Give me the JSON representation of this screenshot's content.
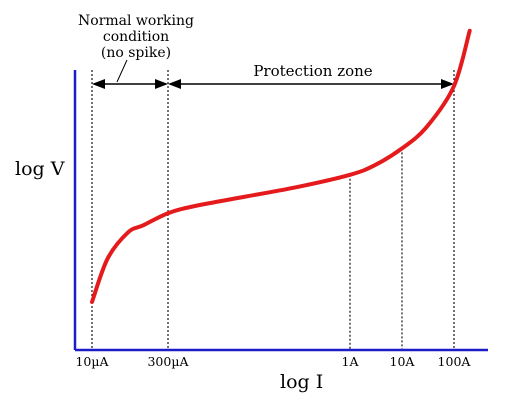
{
  "chart_data": {
    "type": "line",
    "xlabel": "log I",
    "ylabel": "log V",
    "x_scale": "log",
    "x_ticks": [
      {
        "value": 1e-05,
        "label": "10µA"
      },
      {
        "value": 0.0003,
        "label": "300µA"
      },
      {
        "value": 1,
        "label": "1A"
      },
      {
        "value": 10,
        "label": "10A"
      },
      {
        "value": 100,
        "label": "100A"
      }
    ],
    "grid": false,
    "curve_color": "#e41a1c",
    "axis_color": "#1c1cc8",
    "series": [
      {
        "x": [
          1e-05,
          2e-05,
          5e-05,
          0.0001,
          0.0003,
          0.001,
          0.01,
          0.1,
          1,
          3,
          10,
          30,
          100,
          200
        ],
        "y": [
          0.2,
          0.38,
          0.49,
          0.52,
          0.57,
          0.6,
          0.64,
          0.68,
          0.73,
          0.77,
          0.84,
          0.93,
          1.1,
          1.33
        ]
      }
    ],
    "annotations": [
      {
        "text": "Normal working condition (no spike)",
        "from": 1e-05,
        "to": 0.0003
      },
      {
        "text": "Protection zone",
        "from": 0.0003,
        "to": 100
      }
    ]
  },
  "labels": {
    "normal_line1": "Normal working",
    "normal_line2": "condition",
    "normal_line3": "(no spike)",
    "protection": "Protection zone"
  }
}
